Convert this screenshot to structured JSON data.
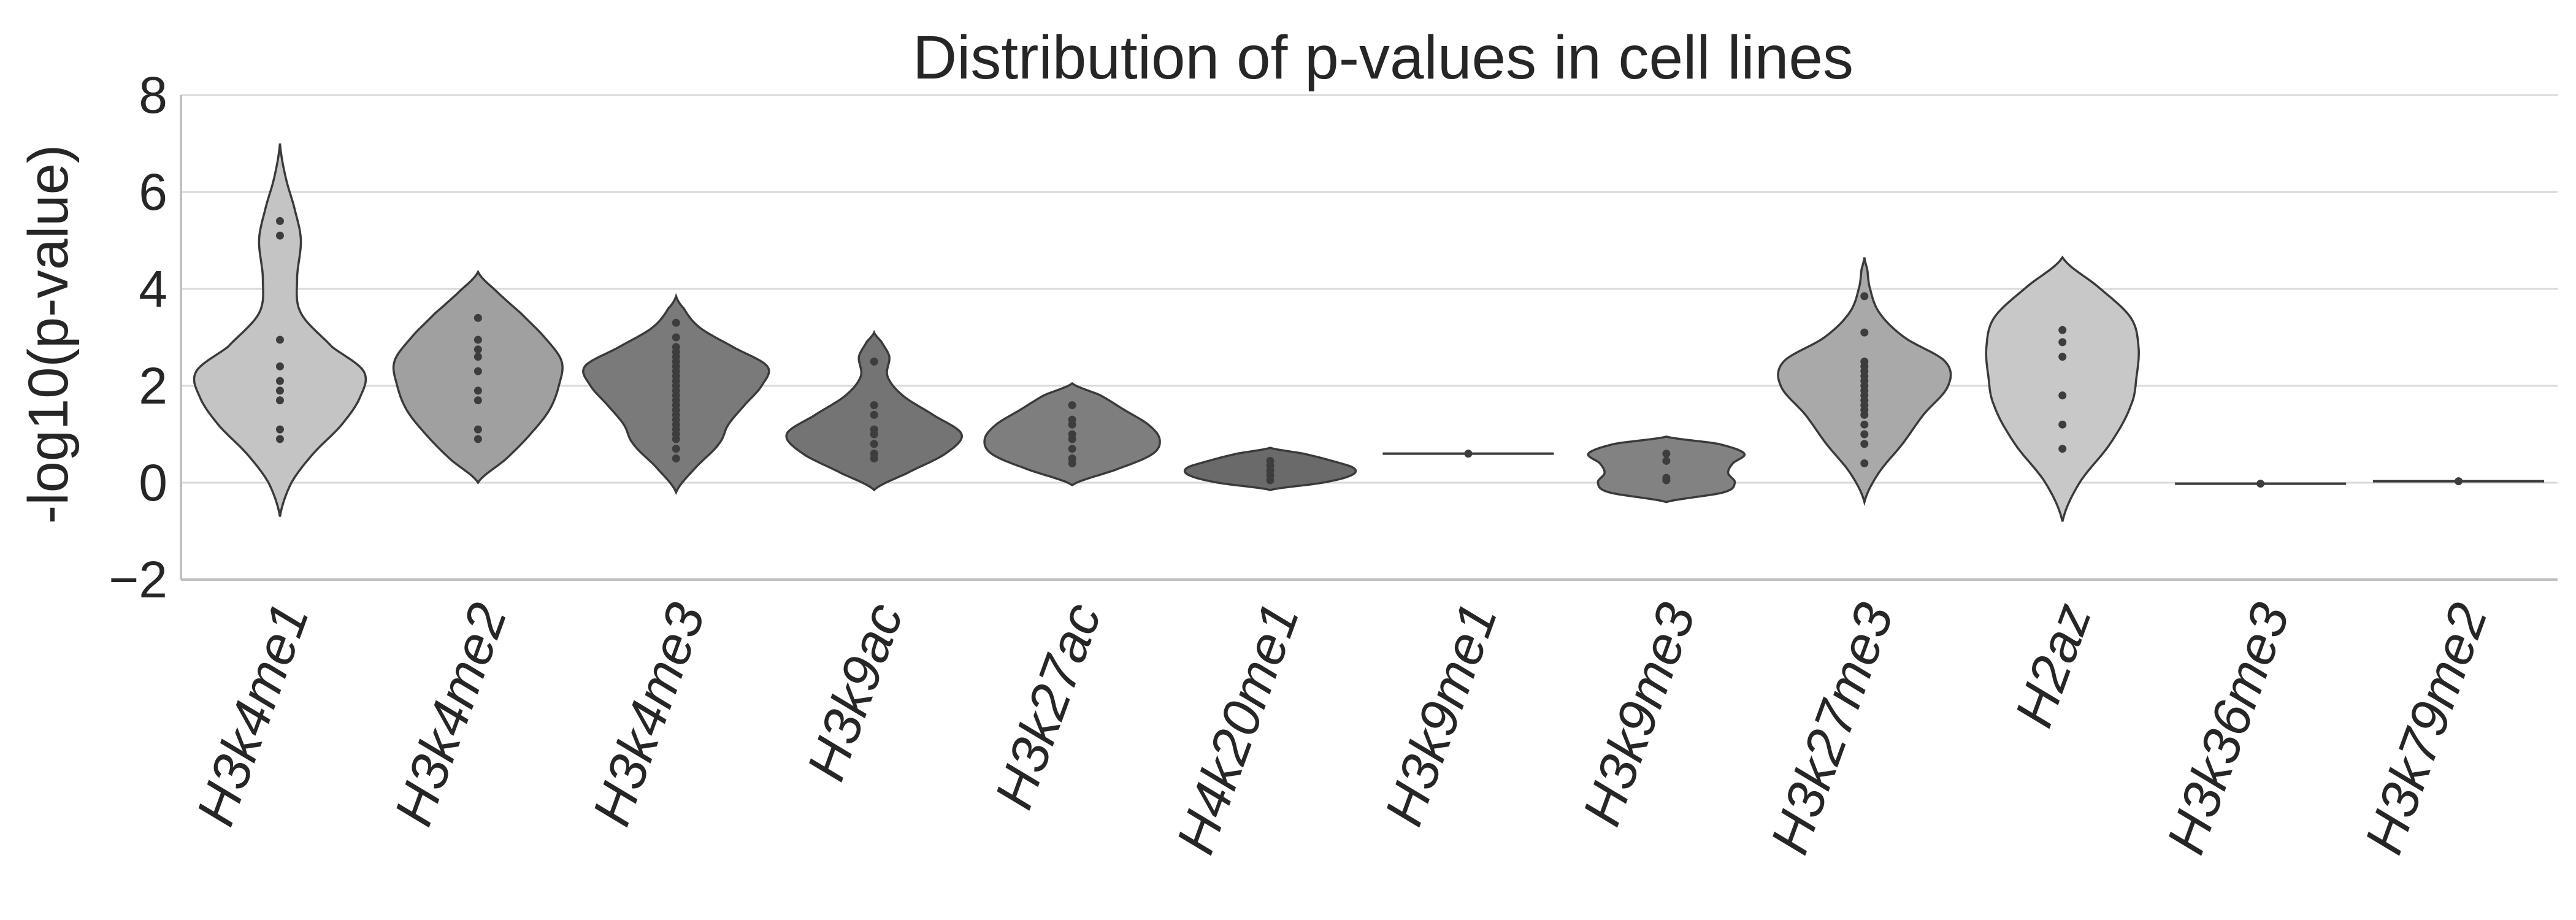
{
  "chart_data": {
    "type": "violin",
    "title": "Distribution of p-values in cell lines",
    "ylabel": "-log10(p-value)",
    "xlabel": "",
    "ylim": [
      -2,
      8
    ],
    "yticks": [
      -2,
      0,
      2,
      4,
      6,
      8
    ],
    "grid": "horizontal",
    "categories": [
      "H3k4me1",
      "H3k4me2",
      "H3k4me3",
      "H3k9ac",
      "H3k27ac",
      "H4k20me1",
      "H3k9me1",
      "H3k9me3",
      "H3k27me3",
      "H2az",
      "H3k36me3",
      "H3k79me2"
    ],
    "colors": [
      "#c4c4c4",
      "#a0a0a0",
      "#7a7a7a",
      "#747474",
      "#7e7e7e",
      "#6a6a6a",
      "#7a7a7a",
      "#828282",
      "#a9a9a9",
      "#c8c8c8",
      "#bdbdbd",
      "#bdbdbd"
    ],
    "series": [
      {
        "values": [
          0.9,
          1.1,
          1.7,
          1.9,
          2.1,
          2.4,
          2.95,
          5.1,
          5.4
        ],
        "density": {
          "y": [
            -0.7,
            0.0,
            0.6,
            1.2,
            1.8,
            2.3,
            2.8,
            3.5,
            4.2,
            5.0,
            5.6,
            6.3,
            7.0
          ],
          "width": [
            0.0,
            0.12,
            0.35,
            0.65,
            0.85,
            0.88,
            0.55,
            0.22,
            0.18,
            0.22,
            0.16,
            0.06,
            0.0
          ]
        }
      },
      {
        "values": [
          0.9,
          1.1,
          1.7,
          1.9,
          2.3,
          2.6,
          2.75,
          2.95,
          3.4
        ],
        "density": {
          "y": [
            0.0,
            0.5,
            1.0,
            1.5,
            2.0,
            2.5,
            3.0,
            3.5,
            3.9,
            4.35
          ],
          "width": [
            0.0,
            0.3,
            0.55,
            0.75,
            0.85,
            0.88,
            0.7,
            0.45,
            0.22,
            0.0
          ]
        }
      },
      {
        "values": [
          0.5,
          0.7,
          0.9,
          1.0,
          1.1,
          1.2,
          1.3,
          1.4,
          1.5,
          1.6,
          1.7,
          1.8,
          1.9,
          2.0,
          2.1,
          2.2,
          2.3,
          2.4,
          2.5,
          2.6,
          2.7,
          2.8,
          3.0,
          3.3
        ],
        "density": {
          "y": [
            -0.2,
            0.3,
            0.8,
            1.2,
            1.6,
            2.0,
            2.4,
            2.8,
            3.2,
            3.6,
            3.85
          ],
          "width": [
            0.0,
            0.2,
            0.45,
            0.55,
            0.72,
            0.9,
            0.96,
            0.6,
            0.25,
            0.08,
            0.0
          ]
        }
      },
      {
        "values": [
          0.5,
          0.6,
          0.8,
          1.0,
          1.1,
          1.4,
          1.6,
          2.5
        ],
        "density": {
          "y": [
            -0.15,
            0.2,
            0.6,
            1.0,
            1.4,
            1.8,
            2.2,
            2.6,
            2.9,
            3.1
          ],
          "width": [
            0.0,
            0.35,
            0.75,
            0.92,
            0.62,
            0.3,
            0.14,
            0.16,
            0.08,
            0.0
          ]
        }
      },
      {
        "values": [
          0.4,
          0.5,
          0.7,
          0.9,
          1.0,
          1.2,
          1.3,
          1.6
        ],
        "density": {
          "y": [
            -0.05,
            0.3,
            0.6,
            0.9,
            1.2,
            1.5,
            1.8,
            2.05
          ],
          "width": [
            0.0,
            0.5,
            0.85,
            0.92,
            0.8,
            0.55,
            0.3,
            0.0
          ]
        }
      },
      {
        "values": [
          0.05,
          0.15,
          0.25,
          0.35,
          0.45
        ],
        "density": {
          "y": [
            -0.15,
            0.0,
            0.15,
            0.3,
            0.45,
            0.6,
            0.72
          ],
          "width": [
            0.0,
            0.55,
            0.85,
            0.88,
            0.65,
            0.35,
            0.0
          ]
        }
      },
      {
        "values": [
          0.6
        ],
        "density": {
          "y": [
            0.6
          ],
          "width": [
            0.9
          ]
        }
      },
      {
        "values": [
          0.05,
          0.1,
          0.45,
          0.6
        ],
        "density": {
          "y": [
            -0.4,
            -0.2,
            0.0,
            0.2,
            0.4,
            0.6,
            0.8,
            0.95
          ],
          "width": [
            0.0,
            0.6,
            0.72,
            0.65,
            0.7,
            0.82,
            0.55,
            0.0
          ]
        }
      },
      {
        "values": [
          0.4,
          0.8,
          1.0,
          1.2,
          1.4,
          1.5,
          1.6,
          1.7,
          1.8,
          1.9,
          2.0,
          2.1,
          2.2,
          2.3,
          2.4,
          2.5,
          3.1,
          3.85
        ],
        "density": {
          "y": [
            -0.4,
            0.2,
            0.8,
            1.4,
            2.0,
            2.5,
            3.0,
            3.5,
            4.0,
            4.4,
            4.65
          ],
          "width": [
            0.0,
            0.15,
            0.4,
            0.62,
            0.88,
            0.85,
            0.42,
            0.16,
            0.06,
            0.03,
            0.0
          ]
        }
      },
      {
        "values": [
          0.7,
          1.2,
          1.8,
          2.6,
          2.9,
          3.15
        ],
        "density": {
          "y": [
            -0.8,
            0.0,
            0.8,
            1.6,
            2.2,
            2.8,
            3.4,
            4.0,
            4.65
          ],
          "width": [
            0.0,
            0.18,
            0.5,
            0.72,
            0.78,
            0.8,
            0.72,
            0.4,
            0.0
          ]
        }
      },
      {
        "values": [
          -0.02
        ],
        "density": {
          "y": [
            -0.02
          ],
          "width": [
            0.9
          ]
        }
      },
      {
        "values": [
          0.03
        ],
        "density": {
          "y": [
            0.03
          ],
          "width": [
            0.9
          ]
        }
      }
    ]
  }
}
